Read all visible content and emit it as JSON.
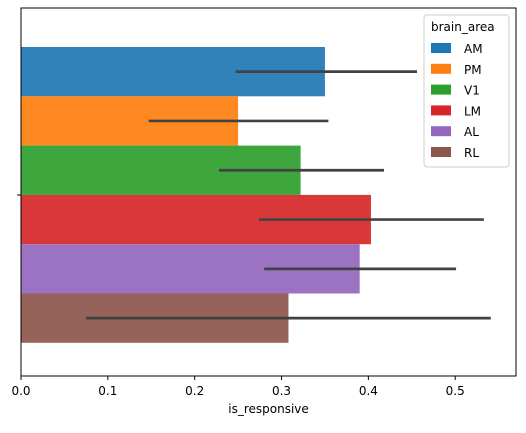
{
  "chart_data": {
    "type": "bar",
    "orientation": "horizontal",
    "xlabel": "is_responsive",
    "ylabel": "",
    "xlim": [
      0,
      0.57
    ],
    "xticks": [
      0.0,
      0.1,
      0.2,
      0.3,
      0.4,
      0.5
    ],
    "xtick_labels": [
      "0.0",
      "0.1",
      "0.2",
      "0.3",
      "0.4",
      "0.5"
    ],
    "grid": false,
    "legend": {
      "title": "brain_area",
      "placement": "top-right"
    },
    "series": [
      {
        "name": "AM",
        "value": 0.35,
        "ci": [
          0.247,
          0.456
        ],
        "color": "#1f77b4"
      },
      {
        "name": "PM",
        "value": 0.25,
        "ci": [
          0.147,
          0.354
        ],
        "color": "#ff7f0e"
      },
      {
        "name": "V1",
        "value": 0.322,
        "ci": [
          0.228,
          0.418
        ],
        "color": "#2ca02c"
      },
      {
        "name": "LM",
        "value": 0.403,
        "ci": [
          0.274,
          0.533
        ],
        "color": "#d62728"
      },
      {
        "name": "AL",
        "value": 0.39,
        "ci": [
          0.28,
          0.501
        ],
        "color": "#9467bd"
      },
      {
        "name": "RL",
        "value": 0.308,
        "ci": [
          0.075,
          0.541
        ],
        "color": "#8c564b"
      }
    ]
  }
}
